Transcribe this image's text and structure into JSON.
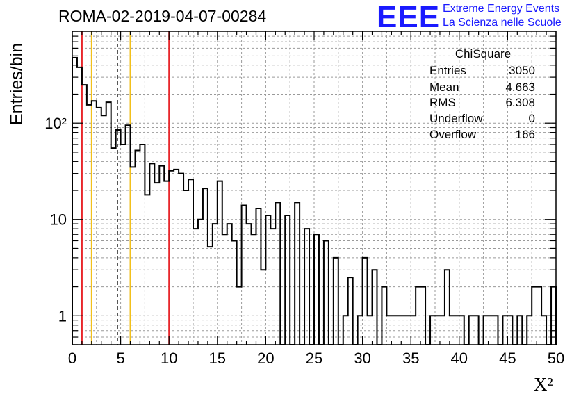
{
  "page": {
    "run_title": "ROMA-02-2019-04-07-00284",
    "logo_text": "EEE",
    "logo_line1": "Extreme Energy Events",
    "logo_line2": "La Scienza nelle Scuole",
    "logo_color": "#1a1aff"
  },
  "stats": {
    "title": "ChiSquare",
    "rows": [
      {
        "label": "Entries",
        "value": "3050"
      },
      {
        "label": "Mean",
        "value": "4.663"
      },
      {
        "label": "RMS",
        "value": "6.308"
      },
      {
        "label": "Underflow",
        "value": "0"
      },
      {
        "label": "Overflow",
        "value": "166"
      }
    ]
  },
  "chart_data": {
    "type": "bar",
    "style": "step-histogram",
    "title": "",
    "xlabel": "X²",
    "ylabel": "Entries/bin",
    "xlim": [
      0,
      50
    ],
    "ylim": [
      0.5,
      900
    ],
    "yscale": "log",
    "grid": true,
    "bin_width": 0.5,
    "x_ticks": [
      "0",
      "5",
      "10",
      "15",
      "20",
      "25",
      "30",
      "35",
      "40",
      "45",
      "50"
    ],
    "y_ticks": [
      {
        "value": 1,
        "label": "1"
      },
      {
        "value": 10,
        "label": "10"
      },
      {
        "value": 100,
        "label": "10²"
      }
    ],
    "values": [
      480,
      380,
      250,
      155,
      170,
      145,
      120,
      165,
      55,
      85,
      60,
      95,
      35,
      52,
      60,
      18,
      38,
      24,
      36,
      25,
      32,
      33,
      30,
      20,
      26,
      8,
      10,
      21,
      5.2,
      9,
      25,
      7,
      9,
      6,
      2,
      14,
      9,
      7,
      13,
      3,
      11,
      8,
      15,
      0,
      11,
      0,
      15,
      0,
      8,
      0,
      7,
      0,
      6,
      0,
      4,
      0,
      1,
      2.5,
      0,
      1,
      4,
      1,
      3,
      0,
      2,
      1,
      1,
      1,
      1,
      1,
      1,
      2,
      2,
      0.3,
      1,
      1,
      1,
      3,
      1,
      1,
      1,
      0,
      1,
      1,
      0,
      1,
      1,
      1,
      0,
      1,
      1,
      0,
      1,
      0,
      1,
      2,
      2,
      1,
      0,
      2
    ],
    "vertical_lines": [
      {
        "x": 1.0,
        "color": "#e8262b",
        "style": "solid"
      },
      {
        "x": 2.0,
        "color": "#f2c01b",
        "style": "solid"
      },
      {
        "x": 4.663,
        "color": "#000000",
        "style": "dashed"
      },
      {
        "x": 6.0,
        "color": "#f2c01b",
        "style": "solid"
      },
      {
        "x": 10.0,
        "color": "#e8262b",
        "style": "solid"
      }
    ]
  }
}
